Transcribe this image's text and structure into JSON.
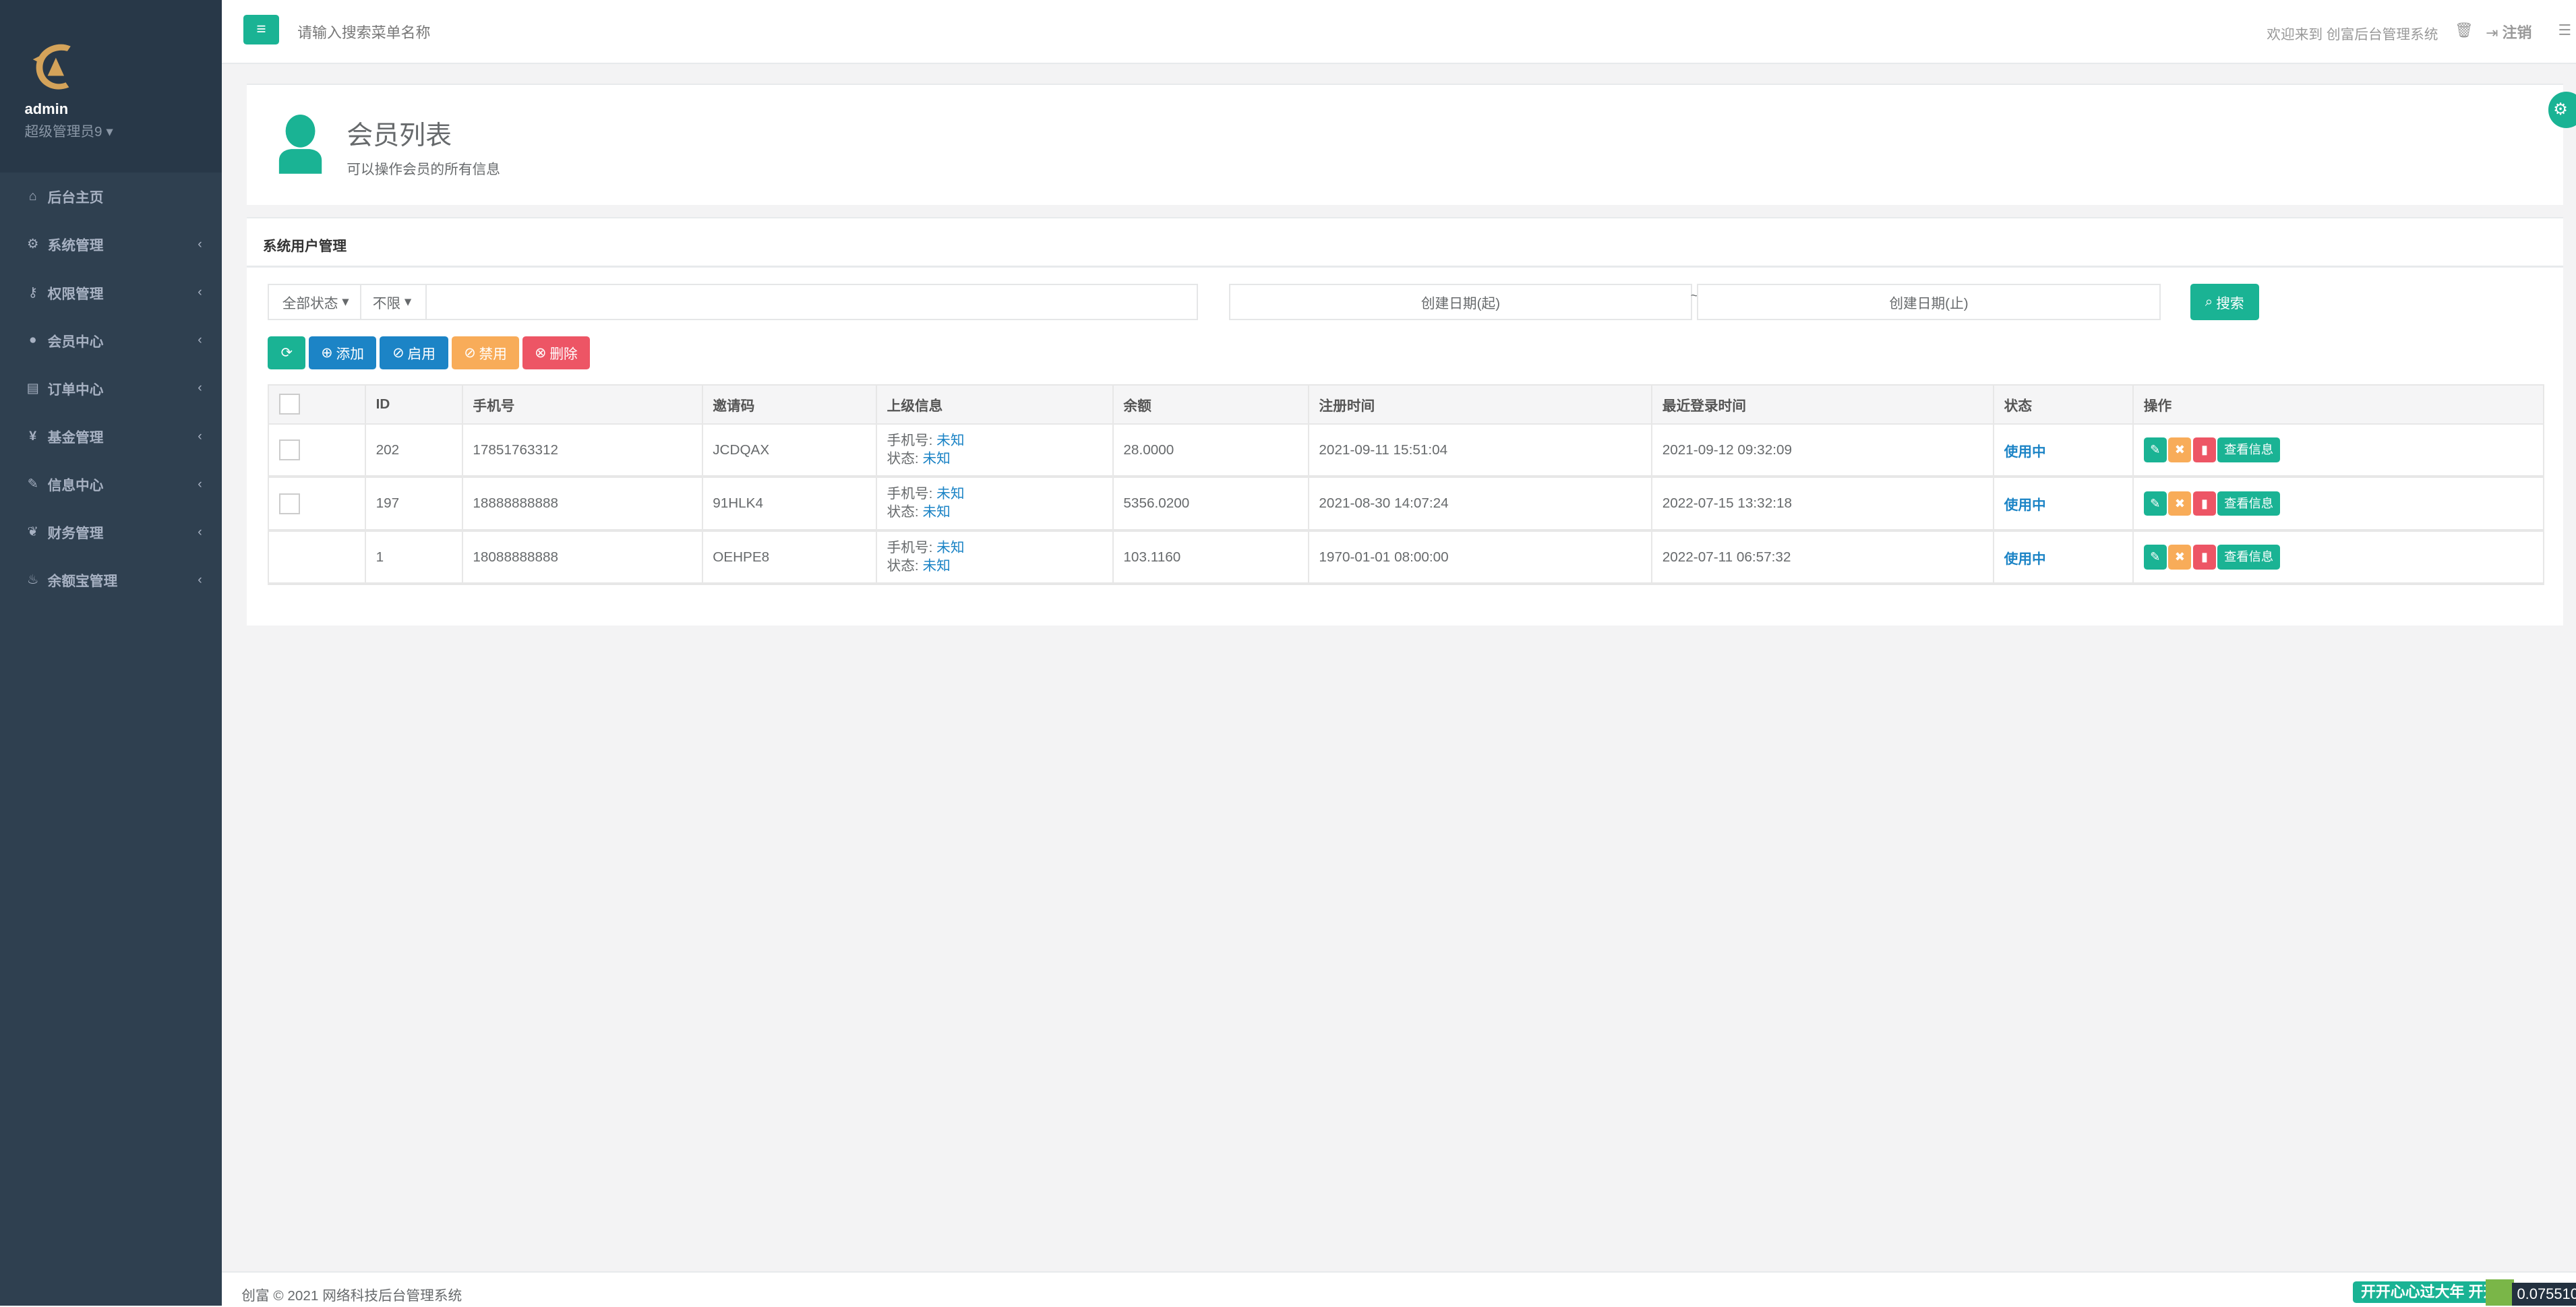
{
  "sidebar": {
    "user": "admin",
    "role": "超级管理员9",
    "items": [
      {
        "label": "后台主页",
        "icon": "home-icon",
        "glyph": "⌂",
        "chev": ""
      },
      {
        "label": "系统管理",
        "icon": "gears-icon",
        "glyph": "⚙",
        "chev": "‹"
      },
      {
        "label": "权限管理",
        "icon": "key-icon",
        "glyph": "⚷",
        "chev": "‹"
      },
      {
        "label": "会员中心",
        "icon": "user-icon",
        "glyph": "●",
        "chev": "‹"
      },
      {
        "label": "订单中心",
        "icon": "keyboard-icon",
        "glyph": "▤",
        "chev": "‹"
      },
      {
        "label": "基金管理",
        "icon": "yen-icon",
        "glyph": "¥",
        "chev": "‹"
      },
      {
        "label": "信息中心",
        "icon": "wrench-icon",
        "glyph": "✎",
        "chev": "‹"
      },
      {
        "label": "财务管理",
        "icon": "leaf-icon",
        "glyph": "❦",
        "chev": "‹"
      },
      {
        "label": "余额宝管理",
        "icon": "fire-icon",
        "glyph": "♨",
        "chev": "‹"
      }
    ]
  },
  "header": {
    "search_placeholder": "请输入搜索菜单名称",
    "welcome": "欢迎来到 创富后台管理系统",
    "logout": "注销"
  },
  "page": {
    "title": "会员列表",
    "subtitle": "可以操作会员的所有信息"
  },
  "panel": {
    "title": "系统用户管理",
    "filters": {
      "status": "全部状态",
      "limit": "不限",
      "date_start_placeholder": "创建日期(起)",
      "date_end_placeholder": "创建日期(止)",
      "sep": "~",
      "search": "搜索"
    },
    "toolbar": {
      "add": "添加",
      "enable": "启用",
      "disable": "禁用",
      "delete": "删除"
    },
    "columns": [
      "ID",
      "手机号",
      "邀请码",
      "上级信息",
      "余额",
      "注册时间",
      "最近登录时间",
      "状态",
      "操作"
    ],
    "rows": [
      {
        "id": "202",
        "phone": "17851763312",
        "invite": "JCDQAX",
        "parent_phone_label": "手机号:",
        "parent_phone": "未知",
        "parent_status_label": "状态:",
        "parent_status": "未知",
        "balance": "28.0000",
        "reg": "2021-09-11 15:51:04",
        "login": "2021-09-12 09:32:09",
        "status": "使用中",
        "view": "查看信息",
        "checkbox": true
      },
      {
        "id": "197",
        "phone": "18888888888",
        "invite": "91HLK4",
        "parent_phone_label": "手机号:",
        "parent_phone": "未知",
        "parent_status_label": "状态:",
        "parent_status": "未知",
        "balance": "5356.0200",
        "reg": "2021-08-30 14:07:24",
        "login": "2022-07-15 13:32:18",
        "status": "使用中",
        "view": "查看信息",
        "checkbox": true
      },
      {
        "id": "1",
        "phone": "18088888888",
        "invite": "OEHPE8",
        "parent_phone_label": "手机号:",
        "parent_phone": "未知",
        "parent_status_label": "状态:",
        "parent_status": "未知",
        "balance": "103.1160",
        "reg": "1970-01-01 08:00:00",
        "login": "2022-07-11 06:57:32",
        "status": "使用中",
        "view": "查看信息",
        "checkbox": false
      }
    ]
  },
  "footer": {
    "copyright": "创富 © 2021 网络科技后台管理系统",
    "marquee": "开开心心过大年 开开心心过大年",
    "counter": "0.075510"
  },
  "colors": {
    "primary": "#1ab394",
    "blue": "#1c84c6",
    "warning": "#f8ac59",
    "danger": "#ed5565",
    "sidebar": "#2f4050"
  }
}
